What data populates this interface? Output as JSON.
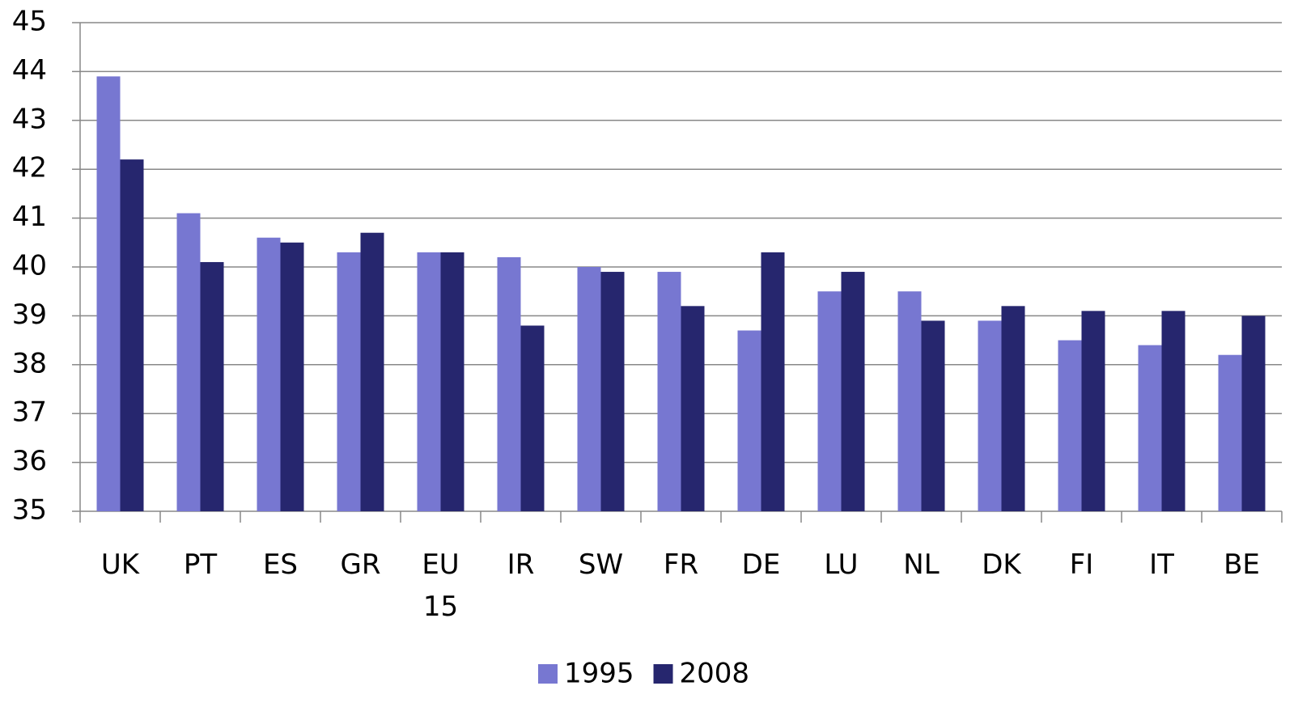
{
  "chart_data": {
    "type": "bar",
    "categories": [
      "UK",
      "PT",
      "ES",
      "GR",
      "EU 15",
      "IR",
      "SW",
      "FR",
      "DE",
      "LU",
      "NL",
      "DK",
      "FI",
      "IT",
      "BE"
    ],
    "series": [
      {
        "name": "1995",
        "color": "#7777d1",
        "values": [
          43.9,
          41.1,
          40.6,
          40.3,
          40.3,
          40.2,
          40.0,
          39.9,
          38.7,
          39.5,
          39.5,
          38.9,
          38.5,
          38.4,
          38.2
        ]
      },
      {
        "name": "2008",
        "color": "#26266e",
        "values": [
          42.2,
          40.1,
          40.5,
          40.7,
          40.3,
          38.8,
          39.9,
          39.2,
          40.3,
          39.9,
          38.9,
          39.2,
          39.1,
          39.1,
          39.0
        ]
      }
    ],
    "ylim": [
      35,
      45
    ],
    "yticks": [
      35,
      36,
      37,
      38,
      39,
      40,
      41,
      42,
      43,
      44,
      45
    ],
    "grid": true,
    "legend": "bottom"
  }
}
